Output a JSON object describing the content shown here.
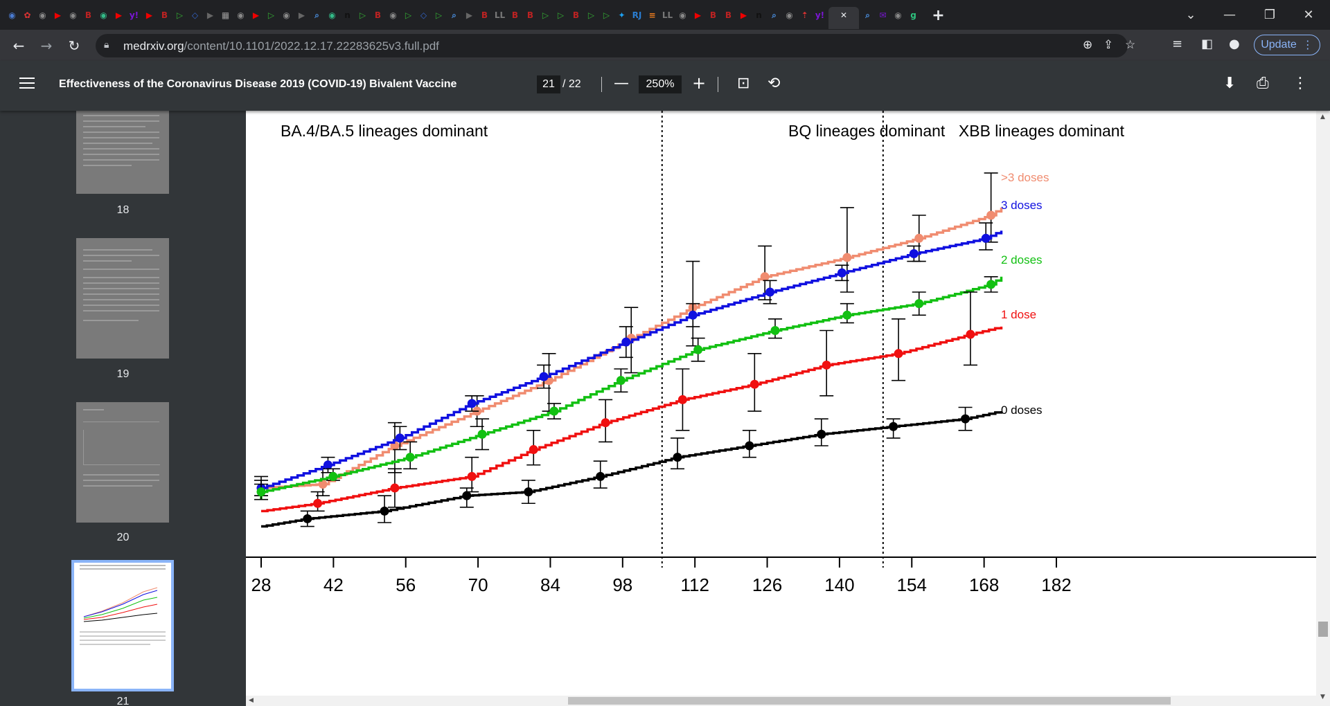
{
  "browser": {
    "tab_icons": [
      {
        "glyph": "◉",
        "color": "#4a7bd1"
      },
      {
        "glyph": "✿",
        "color": "#d33"
      },
      {
        "glyph": "◉",
        "color": "#888"
      },
      {
        "glyph": "▶",
        "color": "#e00"
      },
      {
        "glyph": "◉",
        "color": "#888"
      },
      {
        "glyph": "B",
        "color": "#b22"
      },
      {
        "glyph": "◉",
        "color": "#3b8"
      },
      {
        "glyph": "▶",
        "color": "#e00"
      },
      {
        "glyph": "y!",
        "color": "#7b16d6"
      },
      {
        "glyph": "▶",
        "color": "#e00"
      },
      {
        "glyph": "B",
        "color": "#b22"
      },
      {
        "glyph": "▷",
        "color": "#3a3"
      },
      {
        "glyph": "◇",
        "color": "#36c"
      },
      {
        "glyph": "▶",
        "color": "#666"
      },
      {
        "glyph": "▦",
        "color": "#999"
      },
      {
        "glyph": "◉",
        "color": "#888"
      },
      {
        "glyph": "▶",
        "color": "#e00"
      },
      {
        "glyph": "▷",
        "color": "#3a3"
      },
      {
        "glyph": "◉",
        "color": "#888"
      },
      {
        "glyph": "▶",
        "color": "#666"
      },
      {
        "glyph": "⌕",
        "color": "#4a90e2"
      },
      {
        "glyph": "◉",
        "color": "#3b8"
      },
      {
        "glyph": "n",
        "color": "#111"
      },
      {
        "glyph": "▷",
        "color": "#3a3"
      },
      {
        "glyph": "B",
        "color": "#b22"
      },
      {
        "glyph": "◉",
        "color": "#888"
      },
      {
        "glyph": "▷",
        "color": "#3a3"
      },
      {
        "glyph": "◇",
        "color": "#36c"
      },
      {
        "glyph": "▷",
        "color": "#3a3"
      },
      {
        "glyph": "⌕",
        "color": "#4a90e2"
      },
      {
        "glyph": "▶",
        "color": "#666"
      },
      {
        "glyph": "B",
        "color": "#b22"
      },
      {
        "glyph": "LL",
        "color": "#777"
      },
      {
        "glyph": "B",
        "color": "#b22"
      },
      {
        "glyph": "B",
        "color": "#b22"
      },
      {
        "glyph": "▷",
        "color": "#3a3"
      },
      {
        "glyph": "▷",
        "color": "#3a3"
      },
      {
        "glyph": "B",
        "color": "#b22"
      },
      {
        "glyph": "▷",
        "color": "#3a3"
      },
      {
        "glyph": "▷",
        "color": "#3a3"
      },
      {
        "glyph": "✦",
        "color": "#1da1f2"
      },
      {
        "glyph": "RJ",
        "color": "#2a7dd1"
      },
      {
        "glyph": "≡",
        "color": "#e87a1e"
      },
      {
        "glyph": "LL",
        "color": "#777"
      },
      {
        "glyph": "◉",
        "color": "#888"
      },
      {
        "glyph": "▶",
        "color": "#e00"
      },
      {
        "glyph": "B",
        "color": "#b22"
      },
      {
        "glyph": "B",
        "color": "#b22"
      },
      {
        "glyph": "▶",
        "color": "#e00"
      },
      {
        "glyph": "n",
        "color": "#111"
      },
      {
        "glyph": "⌕",
        "color": "#4a90e2"
      },
      {
        "glyph": "◉",
        "color": "#888"
      },
      {
        "glyph": "⇡",
        "color": "#d33"
      },
      {
        "glyph": "y!",
        "color": "#7b16d6"
      }
    ],
    "active_tab_close": "✕",
    "tab_icons_after": [
      {
        "glyph": "⌕",
        "color": "#4a90e2"
      },
      {
        "glyph": "✉",
        "color": "#7b16d6"
      },
      {
        "glyph": "◉",
        "color": "#888"
      },
      {
        "glyph": "g",
        "color": "#2ec27e"
      }
    ],
    "new_tab": "+",
    "window_controls": {
      "dropdown": "⌄",
      "minimize": "—",
      "restore": "❐",
      "close": "✕"
    },
    "nav": {
      "back": "←",
      "forward": "→",
      "reload": "↻"
    },
    "url_host": "medrxiv.org",
    "url_path": "/content/10.1101/2022.12.17.22283625v3.full.pdf",
    "omnibox_icons": {
      "zoom": "⊕",
      "share": "⇪",
      "bookmark": "☆"
    },
    "toolbar_icons": {
      "reading_list": "≡",
      "side_panel": "◧",
      "profile": "●",
      "menu": "⋮"
    },
    "update_label": "Update"
  },
  "viewer": {
    "menu_label": "menu",
    "title": "Effectiveness of the Coronavirus Disease 2019 (COVID-19) Bivalent Vaccine",
    "page_current": "21",
    "page_total": "/ 22",
    "zoom": "250%",
    "zoom_out": "—",
    "zoom_in": "+",
    "fit_icon": "⊡",
    "rotate_icon": "⟲",
    "download_icon": "⬇",
    "print_icon": "⎙",
    "more_icon": "⋮"
  },
  "sidebar": {
    "thumbnails": [
      {
        "page": "18"
      },
      {
        "page": "19"
      },
      {
        "page": "20"
      },
      {
        "page": "21",
        "selected": true
      }
    ]
  },
  "chart_data": {
    "type": "line",
    "title": "",
    "xlabel": "",
    "ylabel": "",
    "x_ticks": [
      28,
      42,
      56,
      70,
      84,
      98,
      112,
      126,
      140,
      154,
      168,
      182
    ],
    "xlim": [
      18,
      182
    ],
    "ylim": [
      0,
      1
    ],
    "phase_labels": [
      {
        "text": "BA.4/BA.5 lineages dominant"
      },
      {
        "text": "BQ lineages dominant"
      },
      {
        "text": "XBB lineages dominant"
      }
    ],
    "phase_boundaries_x": [
      96,
      139
    ],
    "series": [
      {
        "name": ">3 doses",
        "color": "#f08c70",
        "x": [
          18,
          30,
          44,
          60,
          74,
          90,
          102,
          116,
          132,
          146,
          160
        ],
        "y": [
          0.09,
          0.1,
          0.2,
          0.29,
          0.37,
          0.48,
          0.56,
          0.64,
          0.69,
          0.74,
          0.8
        ],
        "ci": [
          [
            0.07,
            0.12
          ],
          [
            0.07,
            0.14
          ],
          [
            0.13,
            0.26
          ],
          [
            0.25,
            0.33
          ],
          [
            0.29,
            0.44
          ],
          [
            0.39,
            0.56
          ],
          [
            0.46,
            0.68
          ],
          [
            0.58,
            0.72
          ],
          [
            0.6,
            0.82
          ],
          [
            0.68,
            0.8
          ],
          [
            0.73,
            0.91
          ]
        ]
      },
      {
        "name": "3 doses",
        "color": "#1010e0",
        "x": [
          18,
          31,
          45,
          59,
          73,
          89,
          102,
          117,
          131,
          145,
          159
        ],
        "y": [
          0.09,
          0.15,
          0.22,
          0.31,
          0.38,
          0.47,
          0.54,
          0.6,
          0.65,
          0.7,
          0.74
        ],
        "ci": [
          [
            0.07,
            0.11
          ],
          [
            0.13,
            0.17
          ],
          [
            0.19,
            0.25
          ],
          [
            0.29,
            0.33
          ],
          [
            0.35,
            0.41
          ],
          [
            0.43,
            0.51
          ],
          [
            0.51,
            0.57
          ],
          [
            0.57,
            0.63
          ],
          [
            0.63,
            0.67
          ],
          [
            0.68,
            0.72
          ],
          [
            0.71,
            0.78
          ]
        ]
      },
      {
        "name": "2 doses",
        "color": "#12c012",
        "x": [
          18,
          32,
          47,
          61,
          75,
          88,
          103,
          118,
          132,
          146,
          160
        ],
        "y": [
          0.08,
          0.12,
          0.17,
          0.23,
          0.29,
          0.37,
          0.45,
          0.5,
          0.54,
          0.57,
          0.62
        ],
        "ci": [
          [
            0.06,
            0.1
          ],
          [
            0.11,
            0.14
          ],
          [
            0.14,
            0.21
          ],
          [
            0.19,
            0.27
          ],
          [
            0.27,
            0.31
          ],
          [
            0.34,
            0.4
          ],
          [
            0.42,
            0.48
          ],
          [
            0.48,
            0.53
          ],
          [
            0.52,
            0.57
          ],
          [
            0.54,
            0.6
          ],
          [
            0.6,
            0.64
          ]
        ]
      },
      {
        "name": "1 dose",
        "color": "#f01010",
        "x": [
          29,
          44,
          59,
          71,
          85,
          100,
          114,
          128,
          142,
          156
        ],
        "y": [
          0.05,
          0.09,
          0.12,
          0.19,
          0.26,
          0.32,
          0.36,
          0.41,
          0.44,
          0.49
        ],
        "ci": [
          [
            0.03,
            0.08
          ],
          [
            0.04,
            0.14
          ],
          [
            0.08,
            0.17
          ],
          [
            0.15,
            0.24
          ],
          [
            0.21,
            0.32
          ],
          [
            0.24,
            0.4
          ],
          [
            0.29,
            0.44
          ],
          [
            0.33,
            0.5
          ],
          [
            0.37,
            0.53
          ],
          [
            0.41,
            0.6
          ]
        ]
      },
      {
        "name": "0 doses",
        "color": "#000000",
        "x": [
          27,
          42,
          58,
          70,
          84,
          99,
          113,
          127,
          141,
          155
        ],
        "y": [
          0.01,
          0.03,
          0.07,
          0.08,
          0.12,
          0.17,
          0.2,
          0.23,
          0.25,
          0.27
        ],
        "ci": [
          [
            -0.01,
            0.03
          ],
          [
            0.0,
            0.07
          ],
          [
            0.04,
            0.09
          ],
          [
            0.05,
            0.11
          ],
          [
            0.09,
            0.16
          ],
          [
            0.14,
            0.22
          ],
          [
            0.17,
            0.24
          ],
          [
            0.2,
            0.27
          ],
          [
            0.22,
            0.27
          ],
          [
            0.24,
            0.3
          ]
        ]
      }
    ],
    "grid": false,
    "legend": "right"
  }
}
